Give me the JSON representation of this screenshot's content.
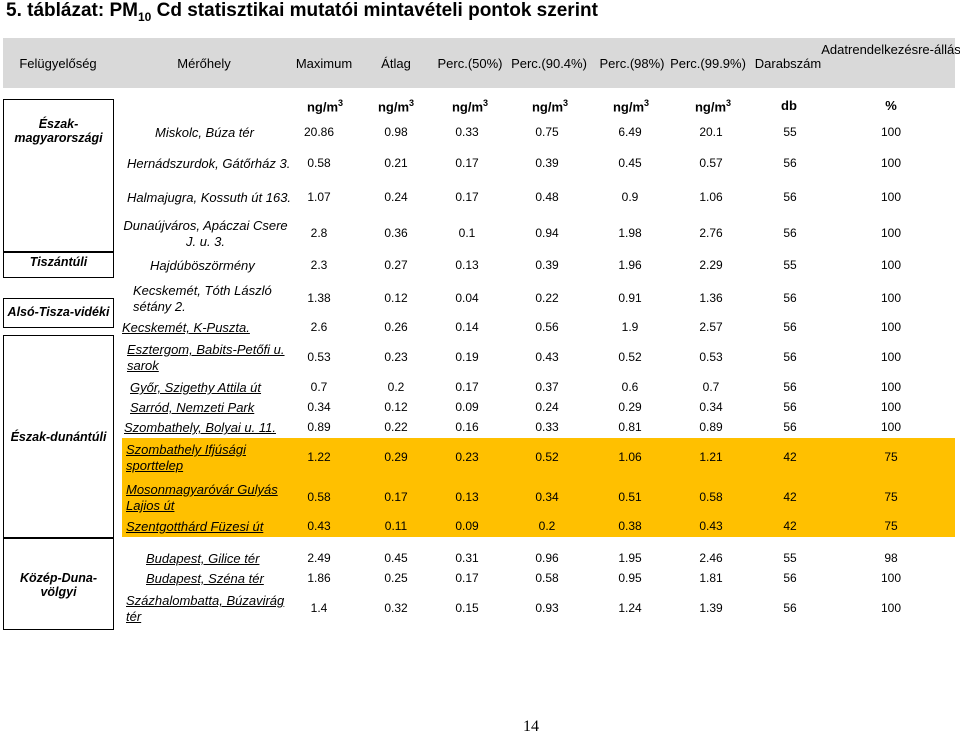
{
  "title": {
    "prefix": "5. táblázat: PM",
    "sub": "10",
    "suffix": " Cd statisztikai mutatói mintavételi pontok szerint"
  },
  "headers": [
    "Felügyelőség",
    "Mérőhely",
    "Maximum",
    "Átlag",
    "Perc.(50%)",
    "Perc.(90.4%)",
    "Perc.(98%)",
    "Perc.(99.9%)",
    "Darabszám",
    "Adatrendelkezésre-állás"
  ],
  "units": {
    "conc": "ng/m",
    "conc_sup": "3",
    "count": "db",
    "avail": "%"
  },
  "regions": [
    "Észak-magyarországi",
    "Tiszántúli",
    "Alsó-Tisza-vidéki",
    "Észak-dunántúli",
    "Közép-Duna-völgyi"
  ],
  "rows": [
    {
      "site": "Miskolc, Búza tér",
      "values": [
        "20.86",
        "0.98",
        "0.33",
        "0.75",
        "6.49",
        "20.1",
        "55",
        "100"
      ]
    },
    {
      "site": "Hernádszurdok, Gátőrház 3.",
      "values": [
        "0.58",
        "0.21",
        "0.17",
        "0.39",
        "0.45",
        "0.57",
        "56",
        "100"
      ]
    },
    {
      "site": "Halmajugra, Kossuth út 163.",
      "values": [
        "1.07",
        "0.24",
        "0.17",
        "0.48",
        "0.9",
        "1.06",
        "56",
        "100"
      ]
    },
    {
      "site": "Dunaújváros, Apáczai Csere J. u. 3.",
      "values": [
        "2.8",
        "0.36",
        "0.1",
        "0.94",
        "1.98",
        "2.76",
        "56",
        "100"
      ]
    },
    {
      "site": "Hajdúböszörmény",
      "values": [
        "2.3",
        "0.27",
        "0.13",
        "0.39",
        "1.96",
        "2.29",
        "55",
        "100"
      ]
    },
    {
      "site": "Kecskemét, Tóth László sétány 2.",
      "values": [
        "1.38",
        "0.12",
        "0.04",
        "0.22",
        "0.91",
        "1.36",
        "56",
        "100"
      ]
    },
    {
      "site": "Kecskemét, K-Puszta.",
      "values": [
        "2.6",
        "0.26",
        "0.14",
        "0.56",
        "1.9",
        "2.57",
        "56",
        "100"
      ]
    },
    {
      "site": "Esztergom, Babits-Petőfi u. sarok",
      "values": [
        "0.53",
        "0.23",
        "0.19",
        "0.43",
        "0.52",
        "0.53",
        "56",
        "100"
      ]
    },
    {
      "site": "Győr, Szigethy Attila út",
      "values": [
        "0.7",
        "0.2",
        "0.17",
        "0.37",
        "0.6",
        "0.7",
        "56",
        "100"
      ]
    },
    {
      "site": "Sarród, Nemzeti Park",
      "values": [
        "0.34",
        "0.12",
        "0.09",
        "0.24",
        "0.29",
        "0.34",
        "56",
        "100"
      ]
    },
    {
      "site": "Szombathely, Bolyai u. 11.",
      "values": [
        "0.89",
        "0.22",
        "0.16",
        "0.33",
        "0.81",
        "0.89",
        "56",
        "100"
      ]
    },
    {
      "site": "Szombathely Ifjúsági sporttelep",
      "values": [
        "1.22",
        "0.29",
        "0.23",
        "0.52",
        "1.06",
        "1.21",
        "42",
        "75"
      ]
    },
    {
      "site": "Mosonmagyaróvár Gulyás Lajios út",
      "values": [
        "0.58",
        "0.17",
        "0.13",
        "0.34",
        "0.51",
        "0.58",
        "42",
        "75"
      ]
    },
    {
      "site": "Szentgotthárd Füzesi út",
      "values": [
        "0.43",
        "0.11",
        "0.09",
        "0.2",
        "0.38",
        "0.43",
        "42",
        "75"
      ]
    },
    {
      "site": "Budapest, Gilice tér",
      "values": [
        "2.49",
        "0.45",
        "0.31",
        "0.96",
        "1.95",
        "2.46",
        "55",
        "98"
      ]
    },
    {
      "site": "Budapest, Széna tér",
      "values": [
        "1.86",
        "0.25",
        "0.17",
        "0.58",
        "0.95",
        "1.81",
        "56",
        "100"
      ]
    },
    {
      "site": "Százhalombatta, Búzavirág tér",
      "values": [
        "1.4",
        "0.32",
        "0.15",
        "0.93",
        "1.24",
        "1.39",
        "56",
        "100"
      ]
    }
  ],
  "highlight_color": "#ffc000",
  "page_number": "14"
}
